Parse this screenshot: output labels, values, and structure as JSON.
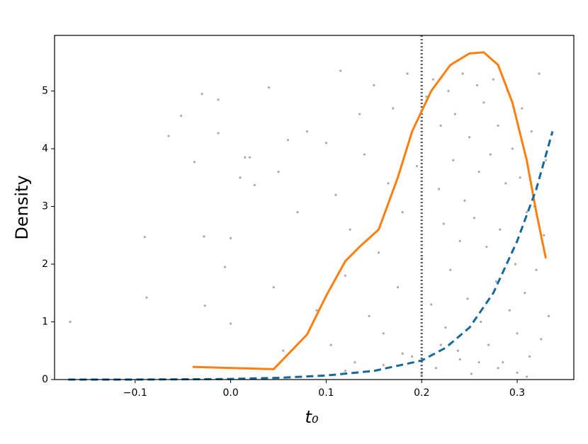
{
  "chart_data": {
    "type": "scatter",
    "xlabel": "t₀",
    "ylabel": "Density",
    "xlim": [
      -0.1844,
      0.3593
    ],
    "ylim": [
      0,
      5.963
    ],
    "xticks": [
      {
        "value": -0.1,
        "label": "−0.1"
      },
      {
        "value": 0.0,
        "label": "0.0"
      },
      0.1,
      0.2,
      0.3
    ],
    "yticks": [
      0,
      1,
      2,
      3,
      4,
      5
    ],
    "vline": 0.2,
    "vline_color": "#555555",
    "points": {
      "color": "#aaaaaa",
      "x": [
        -0.168,
        -0.09,
        -0.088,
        -0.065,
        -0.052,
        -0.038,
        -0.03,
        -0.028,
        -0.027,
        -0.013,
        -0.013,
        0.0,
        -0.006,
        0.0,
        0.01,
        0.015,
        0.02,
        0.025,
        0.04,
        0.045,
        0.05,
        0.06,
        0.055,
        0.07,
        0.08,
        0.09,
        0.1,
        0.105,
        0.11,
        0.115,
        0.12,
        0.125,
        0.13,
        0.135,
        0.14,
        0.145,
        0.15,
        0.155,
        0.16,
        0.165,
        0.17,
        0.175,
        0.18,
        0.185,
        0.19,
        0.195,
        0.2,
        0.205,
        0.21,
        0.212,
        0.215,
        0.218,
        0.22,
        0.223,
        0.225,
        0.228,
        0.23,
        0.233,
        0.235,
        0.238,
        0.24,
        0.243,
        0.245,
        0.248,
        0.25,
        0.252,
        0.255,
        0.258,
        0.26,
        0.262,
        0.265,
        0.268,
        0.27,
        0.272,
        0.275,
        0.278,
        0.28,
        0.282,
        0.285,
        0.288,
        0.29,
        0.292,
        0.295,
        0.298,
        0.3,
        0.303,
        0.305,
        0.308,
        0.31,
        0.313,
        0.315,
        0.318,
        0.32,
        0.323,
        0.325,
        0.328,
        0.33,
        0.333,
        0.12,
        0.16,
        0.2,
        0.24,
        0.28,
        0.31,
        0.18,
        0.22,
        0.26,
        0.3
      ],
      "y": [
        1.0,
        2.47,
        1.42,
        4.22,
        4.57,
        3.77,
        4.95,
        2.48,
        1.28,
        4.85,
        4.27,
        2.45,
        1.95,
        0.97,
        3.5,
        3.85,
        3.85,
        3.37,
        5.06,
        1.6,
        3.6,
        4.15,
        0.5,
        2.9,
        4.3,
        1.2,
        4.1,
        0.6,
        3.2,
        5.35,
        1.8,
        2.6,
        0.3,
        4.6,
        3.9,
        1.1,
        5.1,
        2.2,
        0.8,
        3.4,
        4.7,
        1.6,
        2.9,
        5.3,
        0.4,
        3.7,
        2.1,
        4.9,
        1.3,
        5.2,
        0.2,
        3.3,
        4.4,
        2.7,
        0.9,
        5.0,
        1.9,
        3.8,
        4.6,
        0.5,
        2.4,
        5.3,
        3.1,
        1.4,
        4.2,
        0.1,
        2.8,
        5.1,
        3.6,
        1.0,
        4.8,
        2.3,
        0.6,
        3.9,
        5.2,
        1.7,
        4.4,
        2.6,
        0.3,
        3.4,
        5.0,
        1.2,
        4.0,
        2.0,
        0.8,
        3.5,
        4.7,
        1.5,
        2.9,
        0.4,
        4.3,
        3.0,
        1.9,
        5.3,
        0.7,
        2.5,
        3.8,
        1.1,
        0.15,
        0.25,
        0.1,
        0.35,
        0.2,
        0.05,
        0.45,
        0.6,
        0.3,
        0.12
      ]
    },
    "lines": [
      {
        "color": "#ff7f0e",
        "style": "solid",
        "x": [
          -0.04,
          0.045,
          0.08,
          0.1,
          0.12,
          0.135,
          0.155,
          0.175,
          0.19,
          0.21,
          0.23,
          0.25,
          0.265,
          0.28,
          0.295,
          0.31,
          0.32,
          0.33
        ],
        "y": [
          0.22,
          0.18,
          0.78,
          1.45,
          2.05,
          2.3,
          2.6,
          3.5,
          4.3,
          5.0,
          5.45,
          5.65,
          5.67,
          5.45,
          4.8,
          3.8,
          2.9,
          2.1
        ]
      },
      {
        "color": "#17699b",
        "style": "dashed",
        "x": [
          -0.17,
          -0.1,
          0.0,
          0.05,
          0.1,
          0.15,
          0.2,
          0.225,
          0.25,
          0.275,
          0.3,
          0.32,
          0.337
        ],
        "y": [
          0.0,
          0.0,
          0.01,
          0.03,
          0.07,
          0.15,
          0.33,
          0.55,
          0.9,
          1.5,
          2.4,
          3.3,
          4.3
        ]
      }
    ]
  }
}
